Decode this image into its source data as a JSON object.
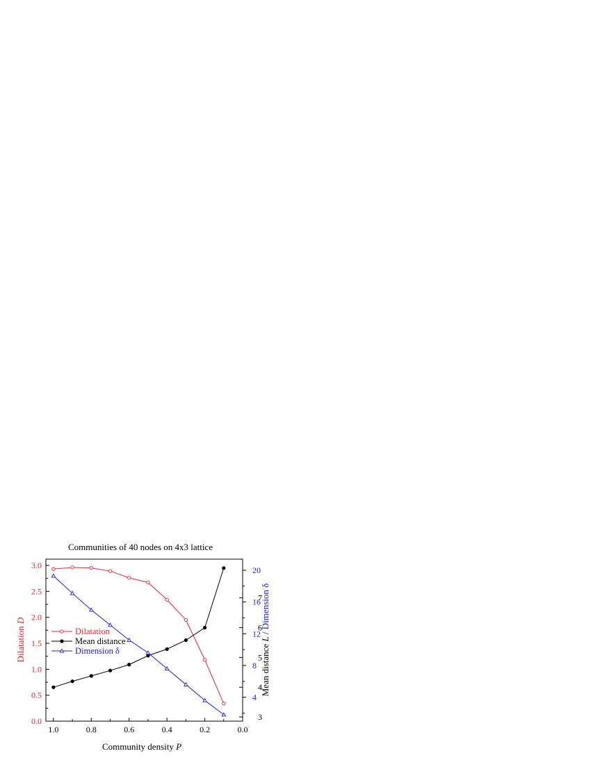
{
  "chart_data": {
    "type": "line",
    "title": "Communities of 40 nodes on 4x3 lattice",
    "x": [
      1.0,
      0.9,
      0.8,
      0.7,
      0.6,
      0.5,
      0.4,
      0.3,
      0.2,
      0.1
    ],
    "xlabel": {
      "text": "Community density ",
      "var": "P"
    },
    "xlim": [
      1.04,
      0.0
    ],
    "xticks": [
      "1.0",
      "0.8",
      "0.6",
      "0.4",
      "0.2",
      "0.0"
    ],
    "y_left": {
      "label": {
        "text": "Dilatation ",
        "var": "D"
      },
      "ylim": [
        0.0,
        3.12
      ],
      "ticks": [
        "0.0",
        "0.5",
        "1.0",
        "1.5",
        "2.0",
        "2.5",
        "3.0"
      ],
      "color": "#e8232a"
    },
    "y_right_mean": {
      "ylim": [
        2.86,
        8.3
      ],
      "ticks": [
        "3",
        "4",
        "5",
        "6",
        "7"
      ],
      "color": "#000000"
    },
    "y_right_dim": {
      "ylim": [
        0.98,
        21.4
      ],
      "ticks": [
        "4",
        "8",
        "12",
        "16",
        "20"
      ],
      "color": "#1a1adb"
    },
    "y_right_label": {
      "part1": "Mean distance ",
      "var": "L",
      "sep": " / ",
      "part2": "Dimension δ"
    },
    "legend_placement": "center-left",
    "series": [
      {
        "name": "Dilatation",
        "axis": "y_left",
        "color": "#e8232a",
        "marker": "open-circle",
        "values": [
          2.93,
          2.96,
          2.95,
          2.89,
          2.76,
          2.67,
          2.34,
          1.95,
          1.18,
          0.34
        ]
      },
      {
        "name": "Mean distance",
        "axis": "y_right_mean",
        "color": "#000000",
        "marker": "filled-circle",
        "values": [
          4.0,
          4.2,
          4.38,
          4.56,
          4.76,
          5.06,
          5.28,
          5.58,
          6.0,
          8.0
        ]
      },
      {
        "name": "Dimension δ",
        "axis": "y_right_dim",
        "color": "#1a1adb",
        "marker": "open-triangle",
        "values": [
          19.3,
          17.1,
          15.0,
          13.1,
          11.2,
          9.6,
          7.6,
          5.6,
          3.6,
          1.8
        ]
      }
    ]
  }
}
